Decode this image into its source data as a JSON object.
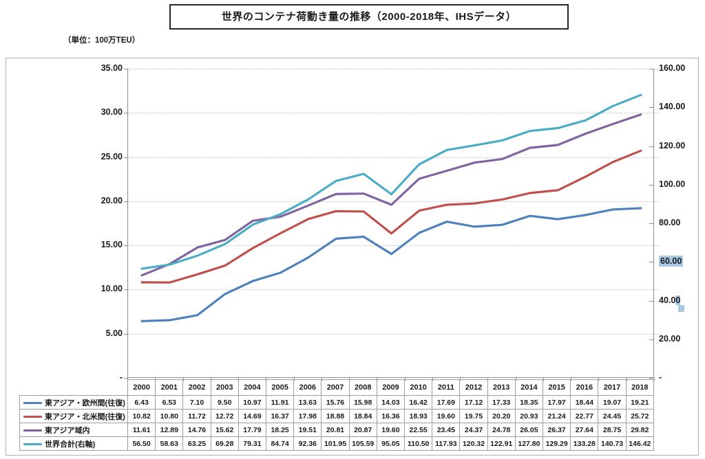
{
  "title": "世界のコンテナ荷動き量の推移（2000-2018年、IHSデータ）",
  "unit_label": "（単位：100万TEU）",
  "colors": {
    "series_blue": "#4F81BD",
    "series_red": "#C0504D",
    "series_purple": "#8064A2",
    "series_cyan": "#4BACC6",
    "gridline": "#c2c2c2",
    "axis_line": "#8c8c8c",
    "table_border": "#9d9d9d",
    "selection_highlight": "#a9c8e3",
    "text": "#1a1a1a"
  },
  "chart_data": {
    "type": "line",
    "title": "世界のコンテナ荷動き量の推移（2000-2018年、IHSデータ）",
    "unit": "100万TEU",
    "grid": "horizontal-dotted",
    "legend_position": "table-left",
    "value_format": "2-decimals",
    "categories": [
      "2000",
      "2001",
      "2002",
      "2003",
      "2004",
      "2005",
      "2006",
      "2007",
      "2008",
      "2009",
      "2010",
      "2011",
      "2012",
      "2013",
      "2014",
      "2015",
      "2016",
      "2017",
      "2018"
    ],
    "series": [
      {
        "name": "東アジア・欧州間(往復)",
        "axis": "left",
        "color": "#4F81BD",
        "values": [
          6.43,
          6.53,
          7.1,
          9.5,
          10.97,
          11.91,
          13.63,
          15.76,
          15.98,
          14.03,
          16.42,
          17.69,
          17.12,
          17.33,
          18.35,
          17.97,
          18.44,
          19.07,
          19.21
        ]
      },
      {
        "name": "東アジア・北米間(往復)",
        "axis": "left",
        "color": "#C0504D",
        "values": [
          10.82,
          10.8,
          11.72,
          12.72,
          14.69,
          16.37,
          17.98,
          18.88,
          18.84,
          16.36,
          18.93,
          19.6,
          19.75,
          20.2,
          20.93,
          21.24,
          22.77,
          24.45,
          25.72
        ]
      },
      {
        "name": "東アジア域内",
        "axis": "left",
        "color": "#8064A2",
        "values": [
          11.61,
          12.89,
          14.76,
          15.62,
          17.79,
          18.25,
          19.51,
          20.81,
          20.87,
          19.6,
          22.55,
          23.45,
          24.37,
          24.78,
          26.05,
          26.37,
          27.64,
          28.75,
          29.82
        ]
      },
      {
        "name": "世界合計(右軸)",
        "axis": "right",
        "color": "#4BACC6",
        "values": [
          56.5,
          58.63,
          63.25,
          69.28,
          79.31,
          84.74,
          92.36,
          101.95,
          105.59,
          95.05,
          110.5,
          117.93,
          120.32,
          122.91,
          127.8,
          129.29,
          133.28,
          140.73,
          146.42
        ]
      }
    ],
    "left_axis": {
      "min": 0,
      "max": 35,
      "tick_labels": [
        "35.00",
        "30.00",
        "25.00",
        "20.00",
        "15.00",
        "10.00",
        "5.00",
        "-"
      ]
    },
    "right_axis": {
      "min": 0,
      "max": 160,
      "tick_labels": [
        "160.00",
        "140.00",
        "120.00",
        "100.00",
        "80.00",
        "60.00",
        "40.00",
        "20.00",
        "-"
      ],
      "highlighted_labels": [
        "60.00"
      ],
      "partially_highlighted_labels": [
        "40.00"
      ]
    }
  }
}
